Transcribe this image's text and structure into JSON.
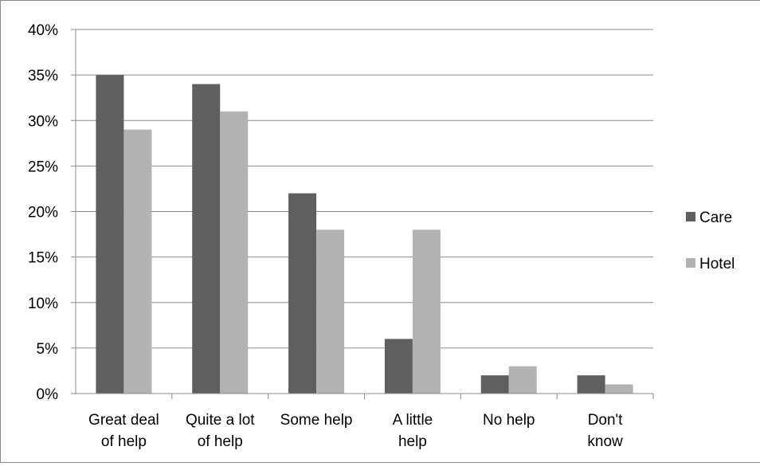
{
  "chart_data": {
    "type": "bar",
    "categories": [
      [
        "Great deal",
        "of help"
      ],
      [
        "Quite a lot",
        "of help"
      ],
      [
        "Some help"
      ],
      [
        "A little",
        "help"
      ],
      [
        "No help"
      ],
      [
        "Don't",
        "know"
      ]
    ],
    "series": [
      {
        "name": "Care",
        "color": "#5f5f5f",
        "values": [
          35,
          34,
          22,
          6,
          2,
          2
        ]
      },
      {
        "name": "Hotel",
        "color": "#b3b3b3",
        "values": [
          29,
          31,
          18,
          18,
          3,
          1
        ]
      }
    ],
    "y_ticks": [
      "0%",
      "5%",
      "10%",
      "15%",
      "20%",
      "25%",
      "30%",
      "35%",
      "40%"
    ],
    "ylim": [
      0,
      40
    ],
    "y_step": 5,
    "grid": true,
    "legend_position": "right",
    "title": "",
    "xlabel": "",
    "ylabel": ""
  }
}
